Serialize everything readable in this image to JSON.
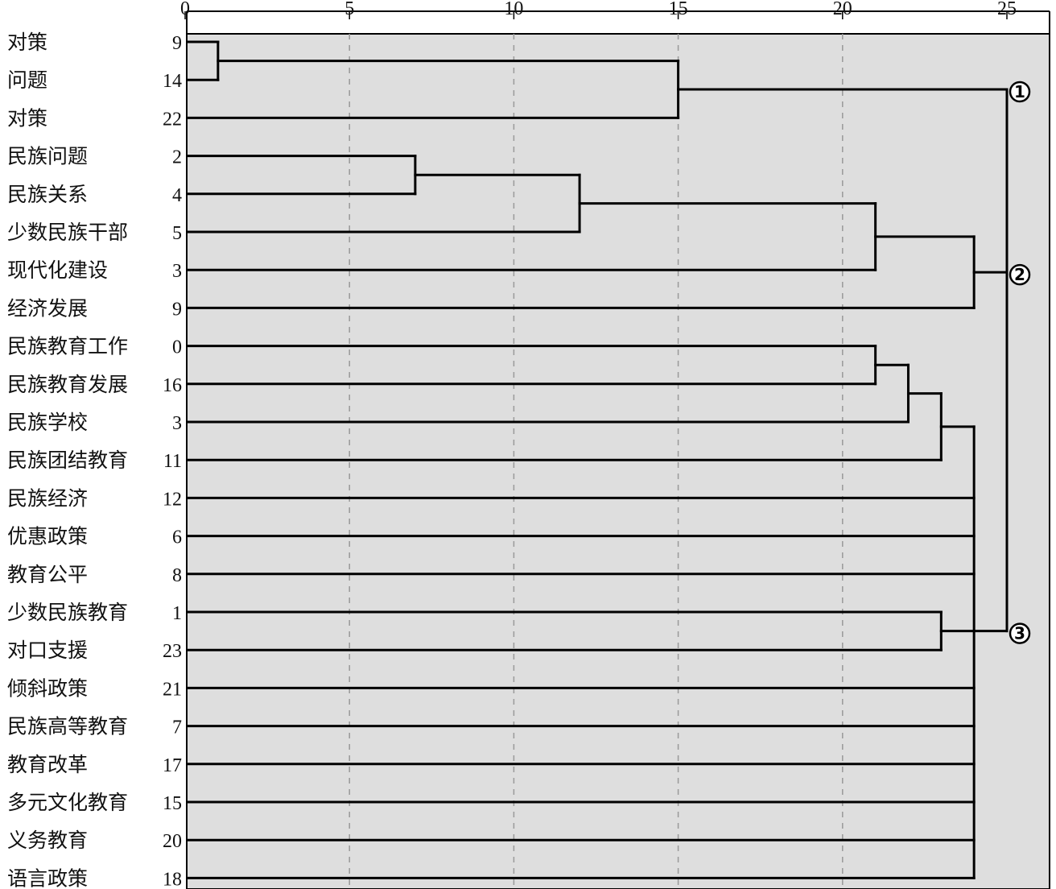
{
  "chart_data": {
    "type": "dendrogram",
    "title": "",
    "xlabel": "",
    "ylabel": "",
    "xlim": [
      0,
      25
    ],
    "x_ticks": [
      0,
      5,
      10,
      15,
      20,
      25
    ],
    "grid": true,
    "colors": {
      "background": "#dedede",
      "line": "#000000",
      "grid": "#999999"
    },
    "leaves": [
      {
        "label": "对策",
        "id": "9"
      },
      {
        "label": "问题",
        "id": "14"
      },
      {
        "label": "对策",
        "id": "22"
      },
      {
        "label": "民族问题",
        "id": "2"
      },
      {
        "label": "民族关系",
        "id": "4"
      },
      {
        "label": "少数民族干部",
        "id": "5"
      },
      {
        "label": "现代化建设",
        "id": "3"
      },
      {
        "label": "经济发展",
        "id": "9"
      },
      {
        "label": "民族教育工作",
        "id": "0"
      },
      {
        "label": "民族教育发展",
        "id": "16"
      },
      {
        "label": "民族学校",
        "id": "3"
      },
      {
        "label": "民族团结教育",
        "id": "11"
      },
      {
        "label": "民族经济",
        "id": "12"
      },
      {
        "label": "优惠政策",
        "id": "6"
      },
      {
        "label": "教育公平",
        "id": "8"
      },
      {
        "label": "少数民族教育",
        "id": "1"
      },
      {
        "label": "对口支援",
        "id": "23"
      },
      {
        "label": "倾斜政策",
        "id": "21"
      },
      {
        "label": "民族高等教育",
        "id": "7"
      },
      {
        "label": "教育改革",
        "id": "17"
      },
      {
        "label": "多元文化教育",
        "id": "15"
      },
      {
        "label": "义务教育",
        "id": "20"
      },
      {
        "label": "语言政策",
        "id": "18"
      }
    ],
    "merges": [
      {
        "children": [
          "L0",
          "L1"
        ],
        "height": 1
      },
      {
        "children": [
          "M0",
          "L2"
        ],
        "height": 15
      },
      {
        "children": [
          "L3",
          "L4"
        ],
        "height": 7
      },
      {
        "children": [
          "M2",
          "L5"
        ],
        "height": 12
      },
      {
        "children": [
          "M3",
          "L6"
        ],
        "height": 21
      },
      {
        "children": [
          "M4",
          "L7"
        ],
        "height": 24
      },
      {
        "children": [
          "L8",
          "L9"
        ],
        "height": 21
      },
      {
        "children": [
          "M6",
          "L10"
        ],
        "height": 22
      },
      {
        "children": [
          "M7",
          "L11"
        ],
        "height": 23
      },
      {
        "children": [
          "L15",
          "L16"
        ],
        "height": 23
      },
      {
        "children": [
          "M8",
          "L12",
          "L13",
          "L14",
          "M9",
          "L17",
          "L18",
          "L19",
          "L20",
          "L21",
          "L22"
        ],
        "height": 24
      },
      {
        "children": [
          "M1",
          "M5",
          "M10"
        ],
        "height": 25
      }
    ],
    "cluster_markers": [
      {
        "label": "①",
        "at": "M1"
      },
      {
        "label": "②",
        "at": "M5"
      },
      {
        "label": "③",
        "at": "M10"
      }
    ]
  }
}
